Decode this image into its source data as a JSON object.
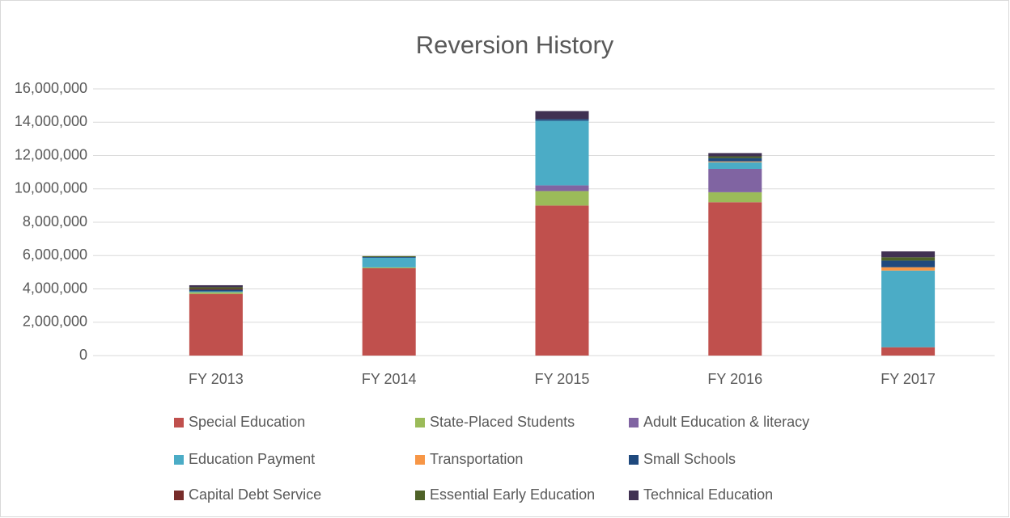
{
  "chart_data": {
    "type": "stacked_bar",
    "title": "Reversion History",
    "categories": [
      "FY 2013",
      "FY 2014",
      "FY 2015",
      "FY 2016",
      "FY 2017"
    ],
    "series": [
      {
        "name": "Special Education",
        "color": "#c0504d",
        "values": [
          3700000,
          5240000,
          9000000,
          9200000,
          500000
        ]
      },
      {
        "name": "State-Placed Students",
        "color": "#9bbb59",
        "values": [
          100000,
          50000,
          870000,
          600000,
          0
        ]
      },
      {
        "name": "Adult Education &  literacy",
        "color": "#8064a2",
        "values": [
          0,
          0,
          340000,
          1400000,
          0
        ]
      },
      {
        "name": "Education Payment",
        "color": "#4bacc6",
        "values": [
          50000,
          580000,
          3880000,
          400000,
          4600000
        ]
      },
      {
        "name": "Transportation",
        "color": "#f79646",
        "values": [
          0,
          0,
          0,
          50000,
          200000
        ]
      },
      {
        "name": "Small Schools",
        "color": "#1f497d",
        "values": [
          100000,
          50000,
          100000,
          200000,
          400000
        ]
      },
      {
        "name": "Capital Debt Service",
        "color": "#772c2a",
        "values": [
          50000,
          0,
          0,
          0,
          0
        ]
      },
      {
        "name": "Essential Early Education",
        "color": "#4f6228",
        "values": [
          100000,
          50000,
          0,
          100000,
          200000
        ]
      },
      {
        "name": "Technical Education",
        "color": "#403152",
        "values": [
          120000,
          0,
          480000,
          200000,
          350000
        ]
      }
    ],
    "ylim": [
      0,
      16000000
    ],
    "yticks": [
      0,
      {
        "value": 2000000,
        "label": "2,000,000"
      },
      {
        "value": 4000000,
        "label": "4,000,000"
      },
      {
        "value": 6000000,
        "label": "6,000,000"
      },
      {
        "value": 8000000,
        "label": "8,000,000"
      },
      {
        "value": 10000000,
        "label": "10,000,000"
      },
      {
        "value": 12000000,
        "label": "12,000,000"
      },
      {
        "value": 14000000,
        "label": "14,000,000"
      },
      {
        "value": 16000000,
        "label": "16,000,000"
      }
    ],
    "grid": true,
    "legend": "bottom"
  }
}
